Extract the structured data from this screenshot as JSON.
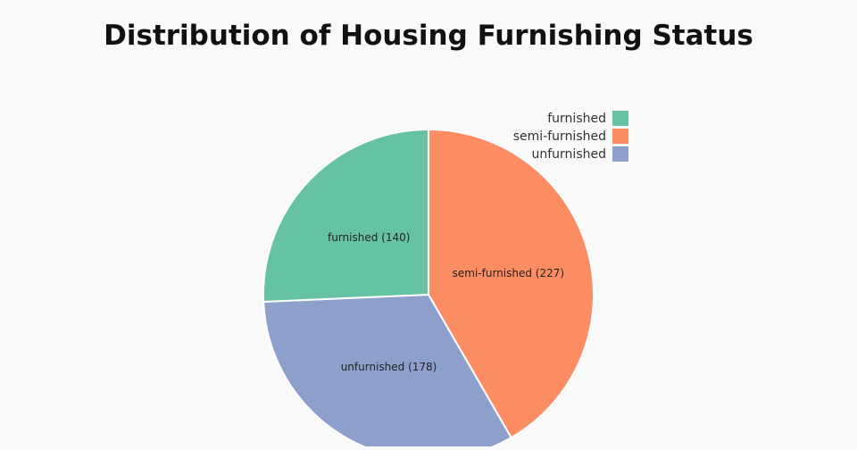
{
  "title": "Distribution of Housing Furnishing Status",
  "chart_data": {
    "type": "pie",
    "title": "Distribution of Housing Furnishing Status",
    "categories": [
      "furnished",
      "semi-furnished",
      "unfurnished"
    ],
    "values": [
      140,
      227,
      178
    ],
    "slice_labels": [
      "furnished (140)",
      "semi-furnished (227)",
      "unfurnished (178)"
    ],
    "colors": [
      "#66c2a5",
      "#fc8d62",
      "#8da0cb"
    ],
    "slice_order": [
      "semi-furnished",
      "unfurnished",
      "furnished"
    ],
    "direction": "clockwise",
    "start": "top",
    "legend_position": "top-right"
  }
}
